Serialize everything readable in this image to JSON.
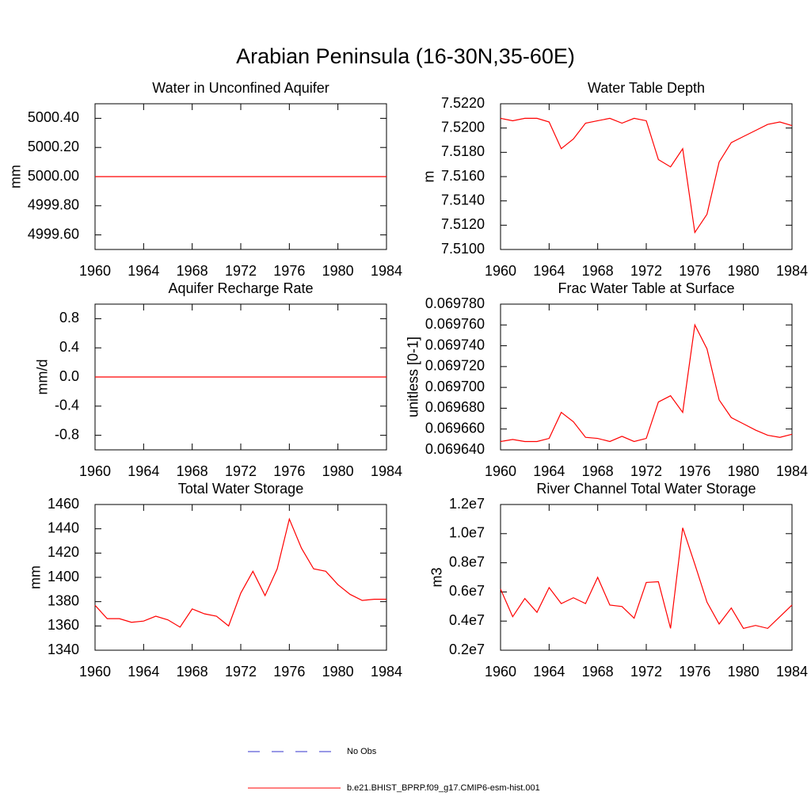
{
  "title": "Arabian Peninsula (16-30N,35-60E)",
  "legend": [
    {
      "name": "No Obs",
      "color": "#3333cc",
      "dash": true
    },
    {
      "name": "b.e21.BHIST_BPRP.f09_g17.CMIP6-esm-hist.001",
      "color": "#ff0000",
      "dash": false
    }
  ],
  "chart_data": [
    {
      "type": "line",
      "title": "Water in Unconfined Aquifer",
      "y_label": "mm",
      "x": [
        1960,
        1961,
        1962,
        1963,
        1964,
        1965,
        1966,
        1967,
        1968,
        1969,
        1970,
        1971,
        1972,
        1973,
        1974,
        1975,
        1976,
        1977,
        1978,
        1979,
        1980,
        1981,
        1982,
        1983,
        1984
      ],
      "series": [
        {
          "color": "#ff0000",
          "values": [
            5000,
            5000,
            5000,
            5000,
            5000,
            5000,
            5000,
            5000,
            5000,
            5000,
            5000,
            5000,
            5000,
            5000,
            5000,
            5000,
            5000,
            5000,
            5000,
            5000,
            5000,
            5000,
            5000,
            5000,
            5000
          ]
        }
      ],
      "xlim": [
        1960,
        1984
      ],
      "xticks": [
        1960,
        1964,
        1968,
        1972,
        1976,
        1980,
        1984
      ],
      "ylim": [
        4999.5,
        5000.5
      ],
      "yticks": [
        {
          "value": 4999.6,
          "label": "4999.60"
        },
        {
          "value": 4999.8,
          "label": "4999.80"
        },
        {
          "value": 5000,
          "label": "5000.00"
        },
        {
          "value": 5000.2,
          "label": "5000.20"
        },
        {
          "value": 5000.4,
          "label": "5000.40"
        }
      ]
    },
    {
      "type": "line",
      "title": "Water Table Depth",
      "y_label": "m",
      "x": [
        1960,
        1961,
        1962,
        1963,
        1964,
        1965,
        1966,
        1967,
        1968,
        1969,
        1970,
        1971,
        1972,
        1973,
        1974,
        1975,
        1976,
        1977,
        1978,
        1979,
        1980,
        1981,
        1982,
        1983,
        1984
      ],
      "series": [
        {
          "color": "#ff0000",
          "values": [
            7.5208,
            7.5206,
            7.5208,
            7.5208,
            7.5205,
            7.5183,
            7.5191,
            7.5204,
            7.5206,
            7.5208,
            7.5204,
            7.5208,
            7.5206,
            7.5174,
            7.5168,
            7.5183,
            7.5114,
            7.5129,
            7.5172,
            7.5188,
            7.5193,
            7.5198,
            7.5203,
            7.5205,
            7.5202
          ]
        }
      ],
      "xlim": [
        1960,
        1984
      ],
      "xticks": [
        1960,
        1964,
        1968,
        1972,
        1976,
        1980,
        1984
      ],
      "ylim": [
        7.51,
        7.522
      ],
      "yticks": [
        {
          "value": 7.51,
          "label": "7.5100"
        },
        {
          "value": 7.512,
          "label": "7.5120"
        },
        {
          "value": 7.514,
          "label": "7.5140"
        },
        {
          "value": 7.516,
          "label": "7.5160"
        },
        {
          "value": 7.518,
          "label": "7.5180"
        },
        {
          "value": 7.52,
          "label": "7.5200"
        },
        {
          "value": 7.522,
          "label": "7.5220"
        }
      ]
    },
    {
      "type": "line",
      "title": "Aquifer Recharge Rate",
      "y_label": "mm/d",
      "x": [
        1960,
        1961,
        1962,
        1963,
        1964,
        1965,
        1966,
        1967,
        1968,
        1969,
        1970,
        1971,
        1972,
        1973,
        1974,
        1975,
        1976,
        1977,
        1978,
        1979,
        1980,
        1981,
        1982,
        1983,
        1984
      ],
      "series": [
        {
          "color": "#ff0000",
          "values": [
            0,
            0,
            0,
            0,
            0,
            0,
            0,
            0,
            0,
            0,
            0,
            0,
            0,
            0,
            0,
            0,
            0,
            0,
            0,
            0,
            0,
            0,
            0,
            0,
            0
          ]
        }
      ],
      "xlim": [
        1960,
        1984
      ],
      "xticks": [
        1960,
        1964,
        1968,
        1972,
        1976,
        1980,
        1984
      ],
      "ylim": [
        -1,
        1
      ],
      "yticks": [
        -0.8,
        -0.4,
        {
          "value": 0,
          "label": "0.0"
        },
        0.4,
        0.8
      ]
    },
    {
      "type": "line",
      "title": "Frac Water Table at Surface",
      "y_label": "unitless [0-1]",
      "x": [
        1960,
        1961,
        1962,
        1963,
        1964,
        1965,
        1966,
        1967,
        1968,
        1969,
        1970,
        1971,
        1972,
        1973,
        1974,
        1975,
        1976,
        1977,
        1978,
        1979,
        1980,
        1981,
        1982,
        1983,
        1984
      ],
      "series": [
        {
          "color": "#ff0000",
          "values": [
            0.069648,
            0.06965,
            0.069648,
            0.069648,
            0.069651,
            0.069676,
            0.069667,
            0.069652,
            0.069651,
            0.069648,
            0.069653,
            0.069648,
            0.069651,
            0.069686,
            0.069692,
            0.069676,
            0.06976,
            0.069737,
            0.069688,
            0.069671,
            0.069665,
            0.069659,
            0.069654,
            0.069652,
            0.069655
          ]
        }
      ],
      "xlim": [
        1960,
        1984
      ],
      "xticks": [
        1960,
        1964,
        1968,
        1972,
        1976,
        1980,
        1984
      ],
      "ylim": [
        0.06964,
        0.06978
      ],
      "yticks": [
        {
          "value": 0.06964,
          "label": "0.069640"
        },
        {
          "value": 0.06966,
          "label": "0.069660"
        },
        {
          "value": 0.06968,
          "label": "0.069680"
        },
        {
          "value": 0.0697,
          "label": "0.069700"
        },
        {
          "value": 0.06972,
          "label": "0.069720"
        },
        {
          "value": 0.06974,
          "label": "0.069740"
        },
        {
          "value": 0.06976,
          "label": "0.069760"
        },
        {
          "value": 0.06978,
          "label": "0.069780"
        }
      ]
    },
    {
      "type": "line",
      "title": "Total Water Storage",
      "y_label": "mm",
      "x": [
        1960,
        1961,
        1962,
        1963,
        1964,
        1965,
        1966,
        1967,
        1968,
        1969,
        1970,
        1971,
        1972,
        1973,
        1974,
        1975,
        1976,
        1977,
        1978,
        1979,
        1980,
        1981,
        1982,
        1983,
        1984
      ],
      "series": [
        {
          "color": "#ff0000",
          "values": [
            1377,
            1366,
            1366,
            1363,
            1364,
            1368,
            1365,
            1359,
            1374,
            1370,
            1368,
            1360,
            1387,
            1405,
            1385,
            1407,
            1448,
            1424,
            1407,
            1405,
            1394,
            1386,
            1381,
            1382,
            1382
          ]
        }
      ],
      "xlim": [
        1960,
        1984
      ],
      "xticks": [
        1960,
        1964,
        1968,
        1972,
        1976,
        1980,
        1984
      ],
      "ylim": [
        1340,
        1460
      ],
      "yticks": [
        1340,
        1360,
        1380,
        1400,
        1420,
        1440,
        1460
      ]
    },
    {
      "type": "line",
      "title": "River Channel Total Water Storage",
      "y_label": "m3",
      "x": [
        1960,
        1961,
        1962,
        1963,
        1964,
        1965,
        1966,
        1967,
        1968,
        1969,
        1970,
        1971,
        1972,
        1973,
        1974,
        1975,
        1976,
        1977,
        1978,
        1979,
        1980,
        1981,
        1982,
        1983,
        1984
      ],
      "series": [
        {
          "color": "#ff0000",
          "values": [
            6200000,
            4300000,
            5550000,
            4600000,
            6300000,
            5200000,
            5600000,
            5200000,
            7000000,
            5100000,
            5000000,
            4200000,
            6650000,
            6700000,
            3500000,
            10400000,
            7900000,
            5300000,
            3800000,
            4900000,
            3500000,
            3700000,
            3500000,
            4300000,
            5100000
          ]
        }
      ],
      "xlim": [
        1960,
        1984
      ],
      "xticks": [
        1960,
        1964,
        1968,
        1972,
        1976,
        1980,
        1984
      ],
      "ylim": [
        2000000,
        12000000
      ],
      "yticks": [
        {
          "value": 2000000,
          "label": "0.2e7"
        },
        {
          "value": 4000000,
          "label": "0.4e7"
        },
        {
          "value": 6000000,
          "label": "0.6e7"
        },
        {
          "value": 8000000,
          "label": "0.8e7"
        },
        {
          "value": 10000000,
          "label": "1.0e7"
        },
        {
          "value": 12000000,
          "label": "1.2e7"
        }
      ]
    }
  ]
}
